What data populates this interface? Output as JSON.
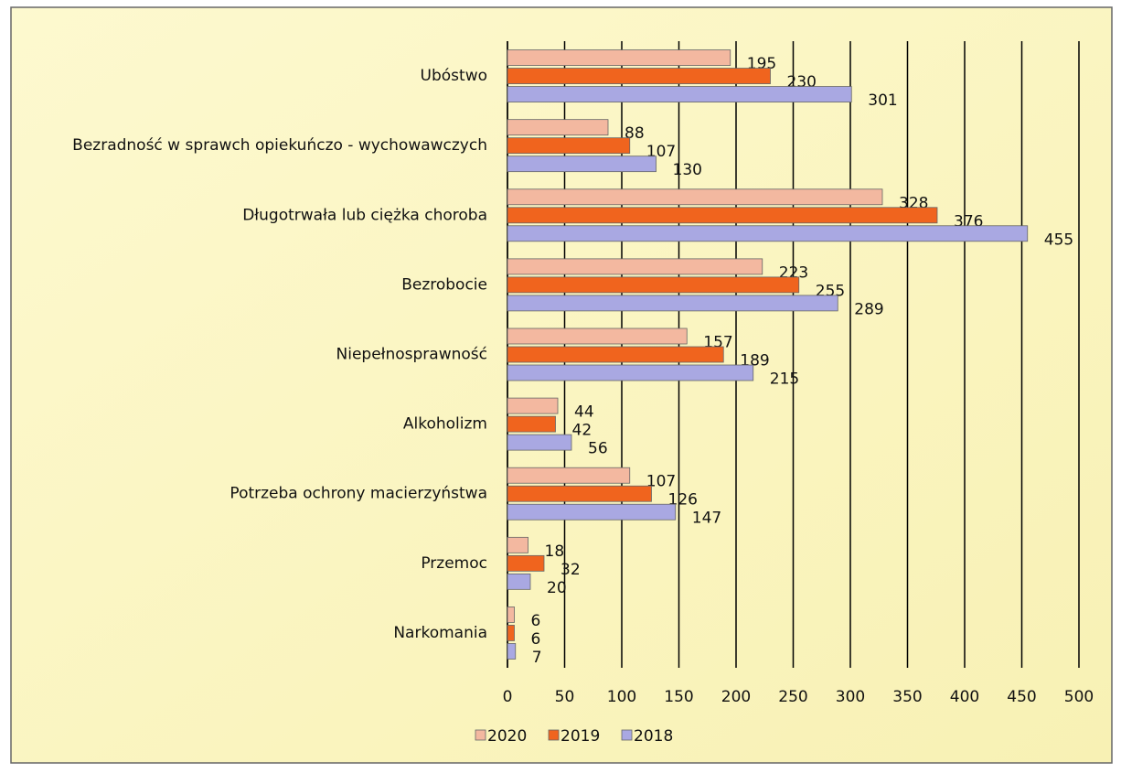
{
  "chart_data": {
    "type": "bar",
    "orientation": "horizontal",
    "categories": [
      "Ubóstwo",
      "Bezradność w sprawch opiekuńczo - wychowawczych",
      "Długotrwała lub ciężka choroba",
      "Bezrobocie",
      "Niepełnosprawność",
      "Alkoholizm",
      "Potrzeba ochrony macierzyństwa",
      "Przemoc",
      "Narkomania"
    ],
    "series": [
      {
        "name": "2020",
        "color": "#f3b8a0",
        "values": [
          195,
          88,
          328,
          223,
          157,
          44,
          107,
          18,
          6
        ]
      },
      {
        "name": "2019",
        "color": "#f0641e",
        "values": [
          230,
          107,
          376,
          255,
          189,
          42,
          126,
          32,
          6
        ]
      },
      {
        "name": "2018",
        "color": "#a9a8e2",
        "values": [
          301,
          130,
          455,
          289,
          215,
          56,
          147,
          20,
          7
        ]
      }
    ],
    "xlim": [
      0,
      500
    ],
    "xticks": [
      0,
      50,
      100,
      150,
      200,
      250,
      300,
      350,
      400,
      450,
      500
    ],
    "grid": true,
    "legend": "bottom"
  }
}
